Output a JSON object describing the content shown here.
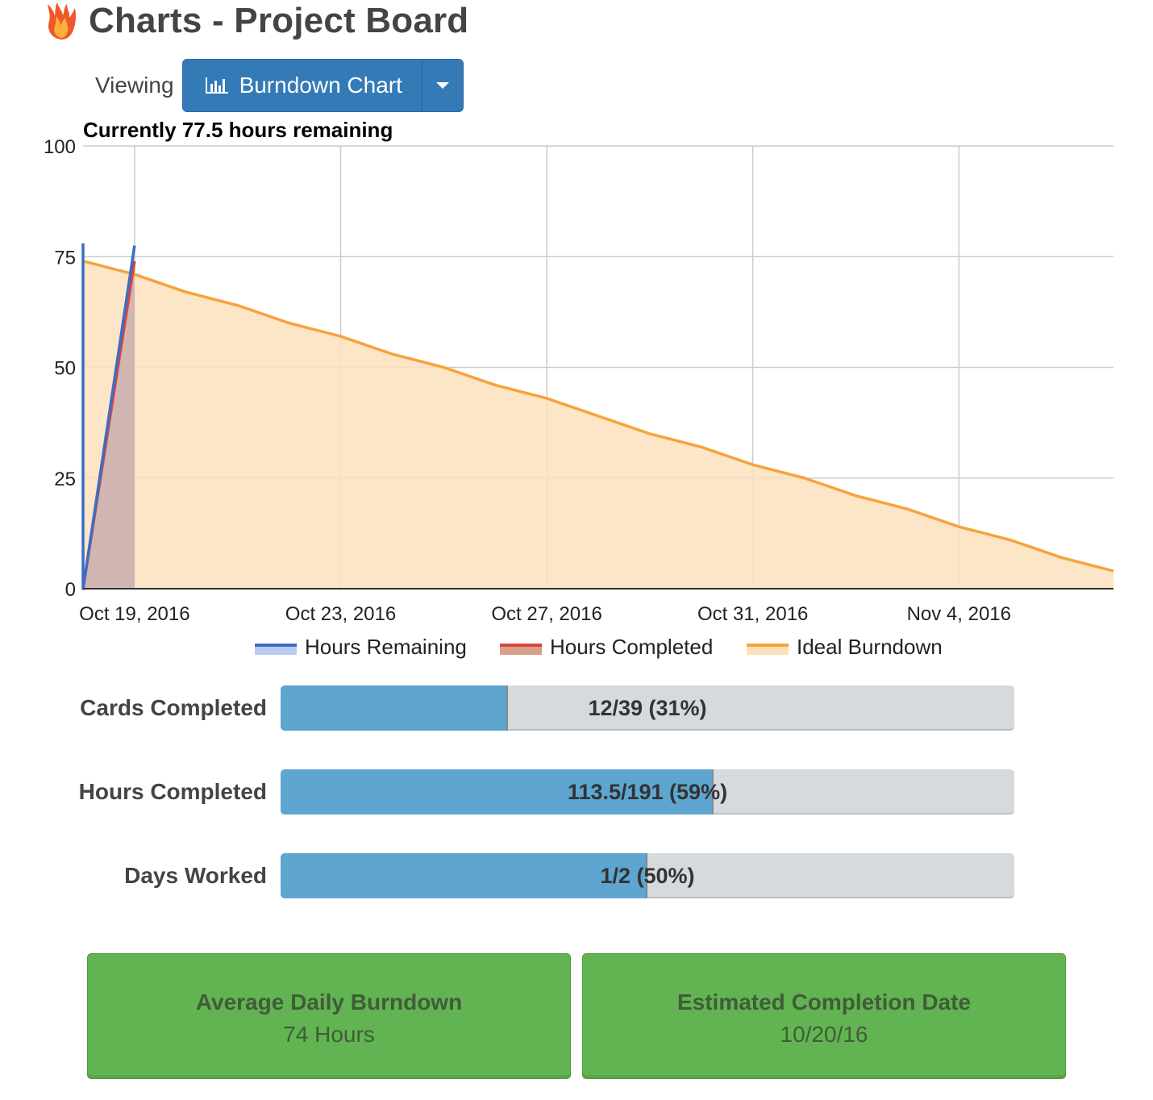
{
  "header": {
    "title": "Charts - Project Board",
    "logo_icon": "flame-icon"
  },
  "viewing": {
    "label": "Viewing",
    "button_label": "Burndown Chart",
    "button_icon": "bar-chart-icon",
    "dropdown_icon": "caret-down-icon",
    "button_color": "#337ab7"
  },
  "summary": {
    "remaining_text": "Currently 77.5 hours remaining"
  },
  "chart_data": {
    "type": "area",
    "title": "",
    "xlabel": "",
    "ylabel": "",
    "ylim": [
      0,
      100
    ],
    "yticks": [
      0,
      25,
      50,
      75,
      100
    ],
    "x_range": [
      "2016-10-18",
      "2016-11-07"
    ],
    "x_tick_labels": [
      {
        "date": "2016-10-19",
        "label": "Oct 19, 2016"
      },
      {
        "date": "2016-10-23",
        "label": "Oct 23, 2016"
      },
      {
        "date": "2016-10-27",
        "label": "Oct 27, 2016"
      },
      {
        "date": "2016-10-31",
        "label": "Oct 31, 2016"
      },
      {
        "date": "2016-11-04",
        "label": "Nov 4, 2016"
      }
    ],
    "grid": true,
    "legend_position": "bottom",
    "series": [
      {
        "name": "Hours Remaining",
        "color": "#3d6cc4",
        "fill": "#b9cbee",
        "points": [
          {
            "x": "2016-10-18",
            "y": 78
          },
          {
            "x": "2016-10-18",
            "y": 0
          },
          {
            "x": "2016-10-19",
            "y": 77.5
          }
        ]
      },
      {
        "name": "Hours Completed",
        "color": "#db4437",
        "fill": "#d7a08a",
        "points": [
          {
            "x": "2016-10-18",
            "y": 0
          },
          {
            "x": "2016-10-19",
            "y": 74
          }
        ]
      },
      {
        "name": "Ideal Burndown",
        "color": "#f7a33a",
        "fill": "#fde0bd",
        "points": [
          {
            "x": "2016-10-18",
            "y": 74
          },
          {
            "x": "2016-10-19",
            "y": 71
          },
          {
            "x": "2016-10-20",
            "y": 67
          },
          {
            "x": "2016-10-21",
            "y": 64
          },
          {
            "x": "2016-10-22",
            "y": 60
          },
          {
            "x": "2016-10-23",
            "y": 57
          },
          {
            "x": "2016-10-24",
            "y": 53
          },
          {
            "x": "2016-10-25",
            "y": 50
          },
          {
            "x": "2016-10-26",
            "y": 46
          },
          {
            "x": "2016-10-27",
            "y": 43
          },
          {
            "x": "2016-10-28",
            "y": 39
          },
          {
            "x": "2016-10-29",
            "y": 35
          },
          {
            "x": "2016-10-30",
            "y": 32
          },
          {
            "x": "2016-10-31",
            "y": 28
          },
          {
            "x": "2016-11-01",
            "y": 25
          },
          {
            "x": "2016-11-02",
            "y": 21
          },
          {
            "x": "2016-11-03",
            "y": 18
          },
          {
            "x": "2016-11-04",
            "y": 14
          },
          {
            "x": "2016-11-05",
            "y": 11
          },
          {
            "x": "2016-11-06",
            "y": 7
          },
          {
            "x": "2016-11-07",
            "y": 4
          }
        ]
      }
    ]
  },
  "stats": [
    {
      "label": "Cards Completed",
      "text": "12/39 (31%)",
      "fraction": 0.31
    },
    {
      "label": "Hours Completed",
      "text": "113.5/191 (59%)",
      "fraction": 0.59
    },
    {
      "label": "Days Worked",
      "text": "1/2 (50%)",
      "fraction": 0.5
    }
  ],
  "panels": [
    {
      "title": "Average Daily Burndown",
      "value": "74 Hours"
    },
    {
      "title": "Estimated Completion Date",
      "value": "10/20/16"
    }
  ],
  "colors": {
    "panel_green": "#62b452",
    "progress_fill": "#5ea5cf",
    "progress_track": "#d7dadd"
  }
}
